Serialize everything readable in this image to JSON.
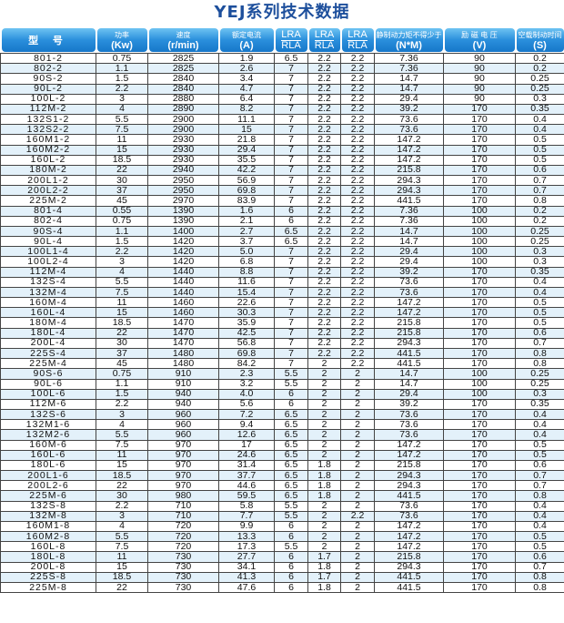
{
  "title": "YEJ系列技术数据",
  "header": {
    "color": "#2a8fdc",
    "columns": [
      {
        "cn": "型 号"
      },
      {
        "cn": "功率",
        "unit": "(Kw)"
      },
      {
        "cn": "速度",
        "unit": "(r/min)"
      },
      {
        "cn": "额定电流",
        "unit": "(A)"
      },
      {
        "top": "LRA",
        "bottom": "RLA"
      },
      {
        "top": "LRA",
        "bottom": "RLA"
      },
      {
        "top": "LRA",
        "bottom": "RLA"
      },
      {
        "cn": "静制动力矩不得少于",
        "unit": "(N*M)"
      },
      {
        "cn": "励 磁 电 压",
        "unit": "(V)"
      },
      {
        "cn": "空载制动时间",
        "unit": "(S)"
      }
    ]
  },
  "row_alt_color": "#e3f1fa",
  "rows": [
    [
      "801-2",
      "0.75",
      "2825",
      "1.9",
      "6.5",
      "2.2",
      "2.2",
      "7.36",
      "90",
      "0.2"
    ],
    [
      "802-2",
      "1.1",
      "2825",
      "2.6",
      "7",
      "2.2",
      "2.2",
      "7.36",
      "90",
      "0.2"
    ],
    [
      "90S-2",
      "1.5",
      "2840",
      "3.4",
      "7",
      "2.2",
      "2.2",
      "14.7",
      "90",
      "0.25"
    ],
    [
      "90L-2",
      "2.2",
      "2840",
      "4.7",
      "7",
      "2.2",
      "2.2",
      "14.7",
      "90",
      "0.25"
    ],
    [
      "100L-2",
      "3",
      "2880",
      "6.4",
      "7",
      "2.2",
      "2.2",
      "29.4",
      "90",
      "0.3"
    ],
    [
      "112M-2",
      "4",
      "2890",
      "8.2",
      "7",
      "2.2",
      "2.2",
      "39.2",
      "170",
      "0.35"
    ],
    [
      "132S1-2",
      "5.5",
      "2900",
      "11.1",
      "7",
      "2.2",
      "2.2",
      "73.6",
      "170",
      "0.4"
    ],
    [
      "132S2-2",
      "7.5",
      "2900",
      "15",
      "7",
      "2.2",
      "2.2",
      "73.6",
      "170",
      "0.4"
    ],
    [
      "160M1-2",
      "11",
      "2930",
      "21.8",
      "7",
      "2.2",
      "2.2",
      "147.2",
      "170",
      "0.5"
    ],
    [
      "160M2-2",
      "15",
      "2930",
      "29.4",
      "7",
      "2.2",
      "2.2",
      "147.2",
      "170",
      "0.5"
    ],
    [
      "160L-2",
      "18.5",
      "2930",
      "35.5",
      "7",
      "2.2",
      "2.2",
      "147.2",
      "170",
      "0.5"
    ],
    [
      "180M-2",
      "22",
      "2940",
      "42.2",
      "7",
      "2.2",
      "2.2",
      "215.8",
      "170",
      "0.6"
    ],
    [
      "200L1-2",
      "30",
      "2950",
      "56.9",
      "7",
      "2.2",
      "2.2",
      "294.3",
      "170",
      "0.7"
    ],
    [
      "200L2-2",
      "37",
      "2950",
      "69.8",
      "7",
      "2.2",
      "2.2",
      "294.3",
      "170",
      "0.7"
    ],
    [
      "225M-2",
      "45",
      "2970",
      "83.9",
      "7",
      "2.2",
      "2.2",
      "441.5",
      "170",
      "0.8"
    ],
    [
      "801-4",
      "0.55",
      "1390",
      "1.6",
      "6",
      "2.2",
      "2.2",
      "7.36",
      "100",
      "0.2"
    ],
    [
      "802-4",
      "0.75",
      "1390",
      "2.1",
      "6",
      "2.2",
      "2.2",
      "7.36",
      "100",
      "0.2"
    ],
    [
      "90S-4",
      "1.1",
      "1400",
      "2.7",
      "6.5",
      "2.2",
      "2.2",
      "14.7",
      "100",
      "0.25"
    ],
    [
      "90L-4",
      "1.5",
      "1420",
      "3.7",
      "6.5",
      "2.2",
      "2.2",
      "14.7",
      "100",
      "0.25"
    ],
    [
      "100L1-4",
      "2.2",
      "1420",
      "5.0",
      "7",
      "2.2",
      "2.2",
      "29.4",
      "100",
      "0.3"
    ],
    [
      "100L2-4",
      "3",
      "1420",
      "6.8",
      "7",
      "2.2",
      "2.2",
      "29.4",
      "100",
      "0.3"
    ],
    [
      "112M-4",
      "4",
      "1440",
      "8.8",
      "7",
      "2.2",
      "2.2",
      "39.2",
      "170",
      "0.35"
    ],
    [
      "132S-4",
      "5.5",
      "1440",
      "11.6",
      "7",
      "2.2",
      "2.2",
      "73.6",
      "170",
      "0.4"
    ],
    [
      "132M-4",
      "7.5",
      "1440",
      "15.4",
      "7",
      "2.2",
      "2.2",
      "73.6",
      "170",
      "0.4"
    ],
    [
      "160M-4",
      "11",
      "1460",
      "22.6",
      "7",
      "2.2",
      "2.2",
      "147.2",
      "170",
      "0.5"
    ],
    [
      "160L-4",
      "15",
      "1460",
      "30.3",
      "7",
      "2.2",
      "2.2",
      "147.2",
      "170",
      "0.5"
    ],
    [
      "180M-4",
      "18.5",
      "1470",
      "35.9",
      "7",
      "2.2",
      "2.2",
      "215.8",
      "170",
      "0.5"
    ],
    [
      "180L-4",
      "22",
      "1470",
      "42.5",
      "7",
      "2.2",
      "2.2",
      "215.8",
      "170",
      "0.6"
    ],
    [
      "200L-4",
      "30",
      "1470",
      "56.8",
      "7",
      "2.2",
      "2.2",
      "294.3",
      "170",
      "0.7"
    ],
    [
      "225S-4",
      "37",
      "1480",
      "69.8",
      "7",
      "2.2",
      "2.2",
      "441.5",
      "170",
      "0.8"
    ],
    [
      "225M-4",
      "45",
      "1480",
      "84.2",
      "7",
      "2",
      "2.2",
      "441.5",
      "170",
      "0.8"
    ],
    [
      "90S-6",
      "0.75",
      "910",
      "2.3",
      "5.5",
      "2",
      "2",
      "14.7",
      "100",
      "0.25"
    ],
    [
      "90L-6",
      "1.1",
      "910",
      "3.2",
      "5.5",
      "2",
      "2",
      "14.7",
      "100",
      "0.25"
    ],
    [
      "100L-6",
      "1.5",
      "940",
      "4.0",
      "6",
      "2",
      "2",
      "29.4",
      "100",
      "0.3"
    ],
    [
      "112M-6",
      "2.2",
      "940",
      "5.6",
      "6",
      "2",
      "2",
      "39.2",
      "170",
      "0.35"
    ],
    [
      "132S-6",
      "3",
      "960",
      "7.2",
      "6.5",
      "2",
      "2",
      "73.6",
      "170",
      "0.4"
    ],
    [
      "132M1-6",
      "4",
      "960",
      "9.4",
      "6.5",
      "2",
      "2",
      "73.6",
      "170",
      "0.4"
    ],
    [
      "132M2-6",
      "5.5",
      "960",
      "12.6",
      "6.5",
      "2",
      "2",
      "73.6",
      "170",
      "0.4"
    ],
    [
      "160M-6",
      "7.5",
      "970",
      "17",
      "6.5",
      "2",
      "2",
      "147.2",
      "170",
      "0.5"
    ],
    [
      "160L-6",
      "11",
      "970",
      "24.6",
      "6.5",
      "2",
      "2",
      "147.2",
      "170",
      "0.5"
    ],
    [
      "180L-6",
      "15",
      "970",
      "31.4",
      "6.5",
      "1.8",
      "2",
      "215.8",
      "170",
      "0.6"
    ],
    [
      "200L1-6",
      "18.5",
      "970",
      "37.7",
      "6.5",
      "1.8",
      "2",
      "294.3",
      "170",
      "0.7"
    ],
    [
      "200L2-6",
      "22",
      "970",
      "44.6",
      "6.5",
      "1.8",
      "2",
      "294.3",
      "170",
      "0.7"
    ],
    [
      "225M-6",
      "30",
      "980",
      "59.5",
      "6.5",
      "1.8",
      "2",
      "441.5",
      "170",
      "0.8"
    ],
    [
      "132S-8",
      "2.2",
      "710",
      "5.8",
      "5.5",
      "2",
      "2",
      "73.6",
      "170",
      "0.4"
    ],
    [
      "132M-8",
      "3",
      "710",
      "7.7",
      "5.5",
      "2",
      "2.2",
      "73.6",
      "170",
      "0.4"
    ],
    [
      "160M1-8",
      "4",
      "720",
      "9.9",
      "6",
      "2",
      "2",
      "147.2",
      "170",
      "0.4"
    ],
    [
      "160M2-8",
      "5.5",
      "720",
      "13.3",
      "6",
      "2",
      "2",
      "147.2",
      "170",
      "0.5"
    ],
    [
      "160L-8",
      "7.5",
      "720",
      "17.3",
      "5.5",
      "2",
      "2",
      "147.2",
      "170",
      "0.5"
    ],
    [
      "180L-8",
      "11",
      "730",
      "27.7",
      "6",
      "1.7",
      "2",
      "215.8",
      "170",
      "0.6"
    ],
    [
      "200L-8",
      "15",
      "730",
      "34.1",
      "6",
      "1.8",
      "2",
      "294.3",
      "170",
      "0.7"
    ],
    [
      "225S-8",
      "18.5",
      "730",
      "41.3",
      "6",
      "1.7",
      "2",
      "441.5",
      "170",
      "0.8"
    ],
    [
      "225M-8",
      "22",
      "730",
      "47.6",
      "6",
      "1.8",
      "2",
      "441.5",
      "170",
      "0.8"
    ]
  ]
}
